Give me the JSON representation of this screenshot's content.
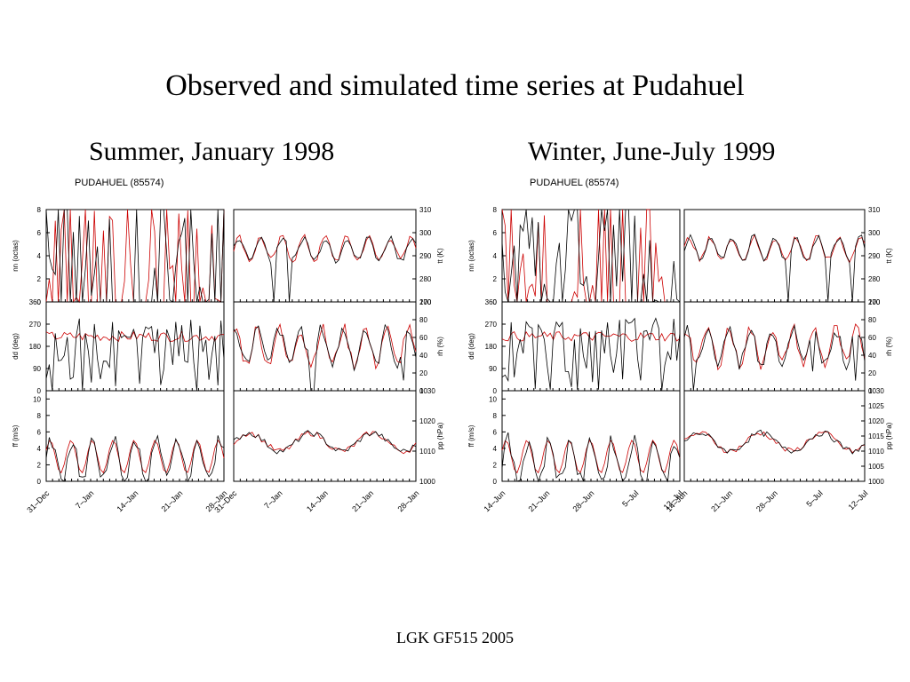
{
  "title": "Observed and simulated time series at Pudahuel",
  "footer": "LGK GF515 2005",
  "legend_note": {
    "observed_color": "#000000",
    "simulated_color": "#cc0000"
  },
  "panels": [
    {
      "subtitle": "Summer, January 1998",
      "station": "PUDAHUEL (85574)",
      "x_ticks_left": [
        "31–Dec",
        "7–Jan",
        "14–Jan",
        "21–Jan",
        "28–Jan"
      ],
      "x_ticks_right": [
        "31–Dec",
        "7–Jan",
        "14–Jan",
        "21–Jan",
        "28–Jan"
      ]
    },
    {
      "subtitle": "Winter, June-July 1999",
      "station": "PUDAHUEL (85574)",
      "x_ticks_left": [
        "14–Jun",
        "21–Jun",
        "28–Jun",
        "5–Jul",
        "12–Jul"
      ],
      "x_ticks_right": [
        "14–Jun",
        "21–Jun",
        "28–Jun",
        "5–Jul",
        "12–Jul"
      ]
    }
  ],
  "chart_data": [
    {
      "type": "line",
      "title": "PUDAHUEL (85574) — Summer, January 1998",
      "x_range": [
        "31–Dec",
        "28–Jan"
      ],
      "series": [
        {
          "name": "observed"
        },
        {
          "name": "simulated"
        }
      ],
      "subplots": [
        {
          "ylabel": "nn (octas)",
          "side": "left",
          "yticks": [
            0,
            2,
            4,
            6,
            8
          ],
          "ylim": [
            0,
            8
          ]
        },
        {
          "ylabel": "tt (K)",
          "side": "right",
          "yticks": [
            270,
            280,
            290,
            300,
            310
          ],
          "ylim": [
            270,
            310
          ]
        },
        {
          "ylabel": "dd (deg)",
          "side": "left",
          "yticks": [
            0,
            90,
            180,
            270,
            360
          ],
          "ylim": [
            0,
            360
          ]
        },
        {
          "ylabel": "rh (%)",
          "side": "right",
          "yticks": [
            0,
            20,
            40,
            60,
            80,
            100
          ],
          "ylim": [
            0,
            100
          ]
        },
        {
          "ylabel": "ff (m/s)",
          "side": "left",
          "yticks": [
            0,
            2,
            4,
            6,
            8,
            10
          ],
          "ylim": [
            0,
            11
          ]
        },
        {
          "ylabel": "pp (hPa)",
          "side": "right",
          "yticks": [
            1000,
            1010,
            1020,
            1030
          ],
          "ylim": [
            1000,
            1030
          ]
        }
      ]
    },
    {
      "type": "line",
      "title": "PUDAHUEL (85574) — Winter, June-July 1999",
      "x_range": [
        "14–Jun",
        "14–Jul"
      ],
      "series": [
        {
          "name": "observed"
        },
        {
          "name": "simulated"
        }
      ],
      "subplots": [
        {
          "ylabel": "nn (octas)",
          "side": "left",
          "yticks": [
            0,
            2,
            4,
            6,
            8
          ],
          "ylim": [
            0,
            8
          ]
        },
        {
          "ylabel": "tt (K)",
          "side": "right",
          "yticks": [
            270,
            280,
            290,
            300,
            310
          ],
          "ylim": [
            270,
            310
          ]
        },
        {
          "ylabel": "dd (deg)",
          "side": "left",
          "yticks": [
            0,
            90,
            180,
            270,
            360
          ],
          "ylim": [
            0,
            360
          ]
        },
        {
          "ylabel": "rh (%)",
          "side": "right",
          "yticks": [
            0,
            20,
            40,
            60,
            80,
            100
          ],
          "ylim": [
            0,
            100
          ]
        },
        {
          "ylabel": "ff (m/s)",
          "side": "left",
          "yticks": [
            0,
            2,
            4,
            6,
            8,
            10
          ],
          "ylim": [
            0,
            11
          ]
        },
        {
          "ylabel": "pp (hPa)",
          "side": "right",
          "yticks": [
            1000,
            1005,
            1010,
            1015,
            1020,
            1025,
            1030
          ],
          "ylim": [
            1000,
            1030
          ]
        }
      ]
    }
  ]
}
